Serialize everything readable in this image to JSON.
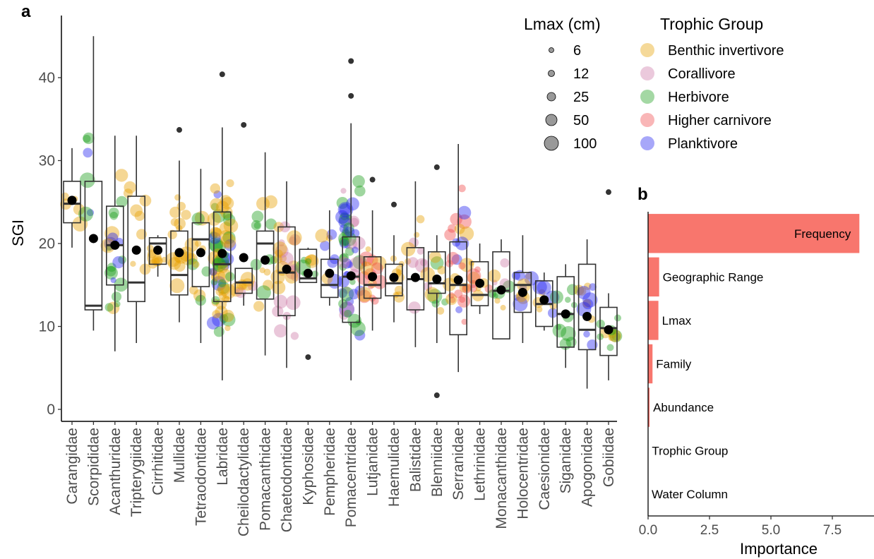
{
  "panels": [
    {
      "letter": "a"
    },
    {
      "letter": "b"
    }
  ],
  "chart_data": [
    {
      "panel": "a",
      "type": "boxplot",
      "xlabel": "",
      "ylabel": "SGI",
      "ylim": [
        0,
        46
      ],
      "yticks": [
        0,
        10,
        20,
        30,
        40
      ],
      "grid": false,
      "categories": [
        "Carangidae",
        "Scorpididae",
        "Acanthuridae",
        "Tripterygiidae",
        "Cirrhitidae",
        "Mullidae",
        "Tetraodontidae",
        "Labridae",
        "Cheilodactylidae",
        "Pomacanthidae",
        "Chaetodontidae",
        "Kyphosidae",
        "Pempheridae",
        "Pomacentridae",
        "Lutjanidae",
        "Haemulidae",
        "Balistidae",
        "Blenniidae",
        "Serranidae",
        "Lethrinidae",
        "Monacanthidae",
        "Holocentridae",
        "Caesionidae",
        "Siganidae",
        "Apogonidae",
        "Gobiidae"
      ],
      "boxes": [
        {
          "family": "Carangidae",
          "whisker_low": 19.5,
          "q1": 22.5,
          "median": 24.8,
          "q3": 27.5,
          "whisker_high": 31.5,
          "mean": 25.2,
          "outliers": []
        },
        {
          "family": "Scorpididae",
          "whisker_low": 9.5,
          "q1": 12.0,
          "median": 12.5,
          "q3": 27.5,
          "whisker_high": 45.0,
          "mean": 20.6,
          "outliers": []
        },
        {
          "family": "Acanthuridae",
          "whisker_low": 7.0,
          "q1": 15.0,
          "median": 19.8,
          "q3": 24.5,
          "whisker_high": 33.0,
          "mean": 19.8,
          "outliers": []
        },
        {
          "family": "Tripterygiidae",
          "whisker_low": 8.0,
          "q1": 13.0,
          "median": 15.3,
          "q3": 25.7,
          "whisker_high": 33.0,
          "mean": 19.2,
          "outliers": []
        },
        {
          "family": "Cirrhitidae",
          "whisker_low": 16.0,
          "q1": 17.5,
          "median": 20.0,
          "q3": 20.7,
          "whisker_high": 21.0,
          "mean": 19.2,
          "outliers": []
        },
        {
          "family": "Mullidae",
          "whisker_low": 10.5,
          "q1": 13.8,
          "median": 16.2,
          "q3": 21.5,
          "whisker_high": 30.0,
          "mean": 18.9,
          "outliers": [
            33.7
          ]
        },
        {
          "family": "Tetraodontidae",
          "whisker_low": 8.0,
          "q1": 14.8,
          "median": 20.5,
          "q3": 22.5,
          "whisker_high": 29.0,
          "mean": 18.9,
          "outliers": []
        },
        {
          "family": "Labridae",
          "whisker_low": 3.5,
          "q1": 13.0,
          "median": 17.5,
          "q3": 23.8,
          "whisker_high": 34.0,
          "mean": 18.8,
          "outliers": [
            40.4
          ]
        },
        {
          "family": "Cheilodactylidae",
          "whisker_low": 12.5,
          "q1": 14.0,
          "median": 15.3,
          "q3": 17.0,
          "whisker_high": 17.0,
          "mean": 18.3,
          "outliers": [
            34.3
          ]
        },
        {
          "family": "Pomacanthidae",
          "whisker_low": 6.5,
          "q1": 13.3,
          "median": 20.0,
          "q3": 21.5,
          "whisker_high": 31.0,
          "mean": 18.0,
          "outliers": []
        },
        {
          "family": "Chaetodontidae",
          "whisker_low": 5.0,
          "q1": 11.3,
          "median": 16.5,
          "q3": 22.0,
          "whisker_high": 27.5,
          "mean": 16.9,
          "outliers": []
        },
        {
          "family": "Kyphosidae",
          "whisker_low": 15.3,
          "q1": 15.3,
          "median": 15.8,
          "q3": 19.3,
          "whisker_high": 19.5,
          "mean": 16.4,
          "outliers": [
            6.3
          ]
        },
        {
          "family": "Pempheridae",
          "whisker_low": 12.5,
          "q1": 13.5,
          "median": 15.0,
          "q3": 18.1,
          "whisker_high": 24.0,
          "mean": 16.4,
          "outliers": []
        },
        {
          "family": "Pomacentridae",
          "whisker_low": 3.5,
          "q1": 10.5,
          "median": 16.0,
          "q3": 20.8,
          "whisker_high": 34.5,
          "mean": 16.1,
          "outliers": [
            37.8,
            42.0
          ]
        },
        {
          "family": "Lutjanidae",
          "whisker_low": 9.5,
          "q1": 13.4,
          "median": 15.0,
          "q3": 18.4,
          "whisker_high": 24.0,
          "mean": 16.0,
          "outliers": [
            27.7
          ]
        },
        {
          "family": "Haemulidae",
          "whisker_low": 10.5,
          "q1": 13.7,
          "median": 15.2,
          "q3": 17.5,
          "whisker_high": 21.0,
          "mean": 15.9,
          "outliers": [
            24.7
          ]
        },
        {
          "family": "Balistidae",
          "whisker_low": 7.5,
          "q1": 12.0,
          "median": 15.7,
          "q3": 19.5,
          "whisker_high": 27.5,
          "mean": 15.9,
          "outliers": []
        },
        {
          "family": "Blenniidae",
          "whisker_low": 8.0,
          "q1": 14.0,
          "median": 15.2,
          "q3": 19.0,
          "whisker_high": 21.0,
          "mean": 15.7,
          "outliers": [
            29.2,
            1.7
          ]
        },
        {
          "family": "Serranidae",
          "whisker_low": 4.5,
          "q1": 9.0,
          "median": 15.0,
          "q3": 20.2,
          "whisker_high": 32.0,
          "mean": 15.6,
          "outliers": []
        },
        {
          "family": "Lethrinidae",
          "whisker_low": 11.5,
          "q1": 12.5,
          "median": 13.8,
          "q3": 17.8,
          "whisker_high": 20.0,
          "mean": 15.2,
          "outliers": []
        },
        {
          "family": "Monacanthidae",
          "whisker_low": 8.5,
          "q1": 8.5,
          "median": 14.3,
          "q3": 19.0,
          "whisker_high": 20.5,
          "mean": 14.4,
          "outliers": []
        },
        {
          "family": "Holocentridae",
          "whisker_low": 8.0,
          "q1": 11.7,
          "median": 15.0,
          "q3": 16.5,
          "whisker_high": 21.0,
          "mean": 14.1,
          "outliers": []
        },
        {
          "family": "Caesionidae",
          "whisker_low": 9.5,
          "q1": 10.0,
          "median": 12.7,
          "q3": 15.5,
          "whisker_high": 16.5,
          "mean": 13.2,
          "outliers": []
        },
        {
          "family": "Siganidae",
          "whisker_low": 5.0,
          "q1": 7.5,
          "median": 11.5,
          "q3": 16.0,
          "whisker_high": 17.5,
          "mean": 11.5,
          "outliers": []
        },
        {
          "family": "Apogonidae",
          "whisker_low": 2.5,
          "q1": 7.2,
          "median": 9.6,
          "q3": 17.5,
          "whisker_high": 20.5,
          "mean": 11.2,
          "outliers": []
        },
        {
          "family": "Gobiidae",
          "whisker_low": 3.5,
          "q1": 6.5,
          "median": 9.8,
          "q3": 12.3,
          "whisker_high": 14.0,
          "mean": 9.6,
          "outliers": [
            26.2
          ]
        }
      ],
      "size_legend": {
        "title": "Lmax (cm)",
        "values": [
          6,
          12,
          25,
          50,
          100
        ]
      },
      "color_legend": {
        "title": "Trophic Group",
        "items": [
          {
            "label": "Benthic invertivore",
            "color": "#E69F00"
          },
          {
            "label": "Corallivore",
            "color": "#CC79A7"
          },
          {
            "label": "Herbivore",
            "color": "#1B9E1B"
          },
          {
            "label": "Higher carnivore",
            "color": "#F0494B"
          },
          {
            "label": "Planktivore",
            "color": "#2323F0"
          }
        ]
      }
    },
    {
      "panel": "b",
      "type": "bar",
      "orientation": "horizontal",
      "xlabel": "Importance",
      "ylabel": "",
      "xlim": [
        0,
        8.6
      ],
      "xticks": [
        "0.0",
        "2.5",
        "5.0",
        "7.5"
      ],
      "bar_color": "#F8766D",
      "categories": [
        "Frequency",
        "Geographic Range",
        "Lmax",
        "Family",
        "Abundance",
        "Trophic Group",
        "Water Column"
      ],
      "values": [
        8.6,
        0.45,
        0.42,
        0.18,
        0.06,
        0.01,
        0.0
      ]
    }
  ]
}
